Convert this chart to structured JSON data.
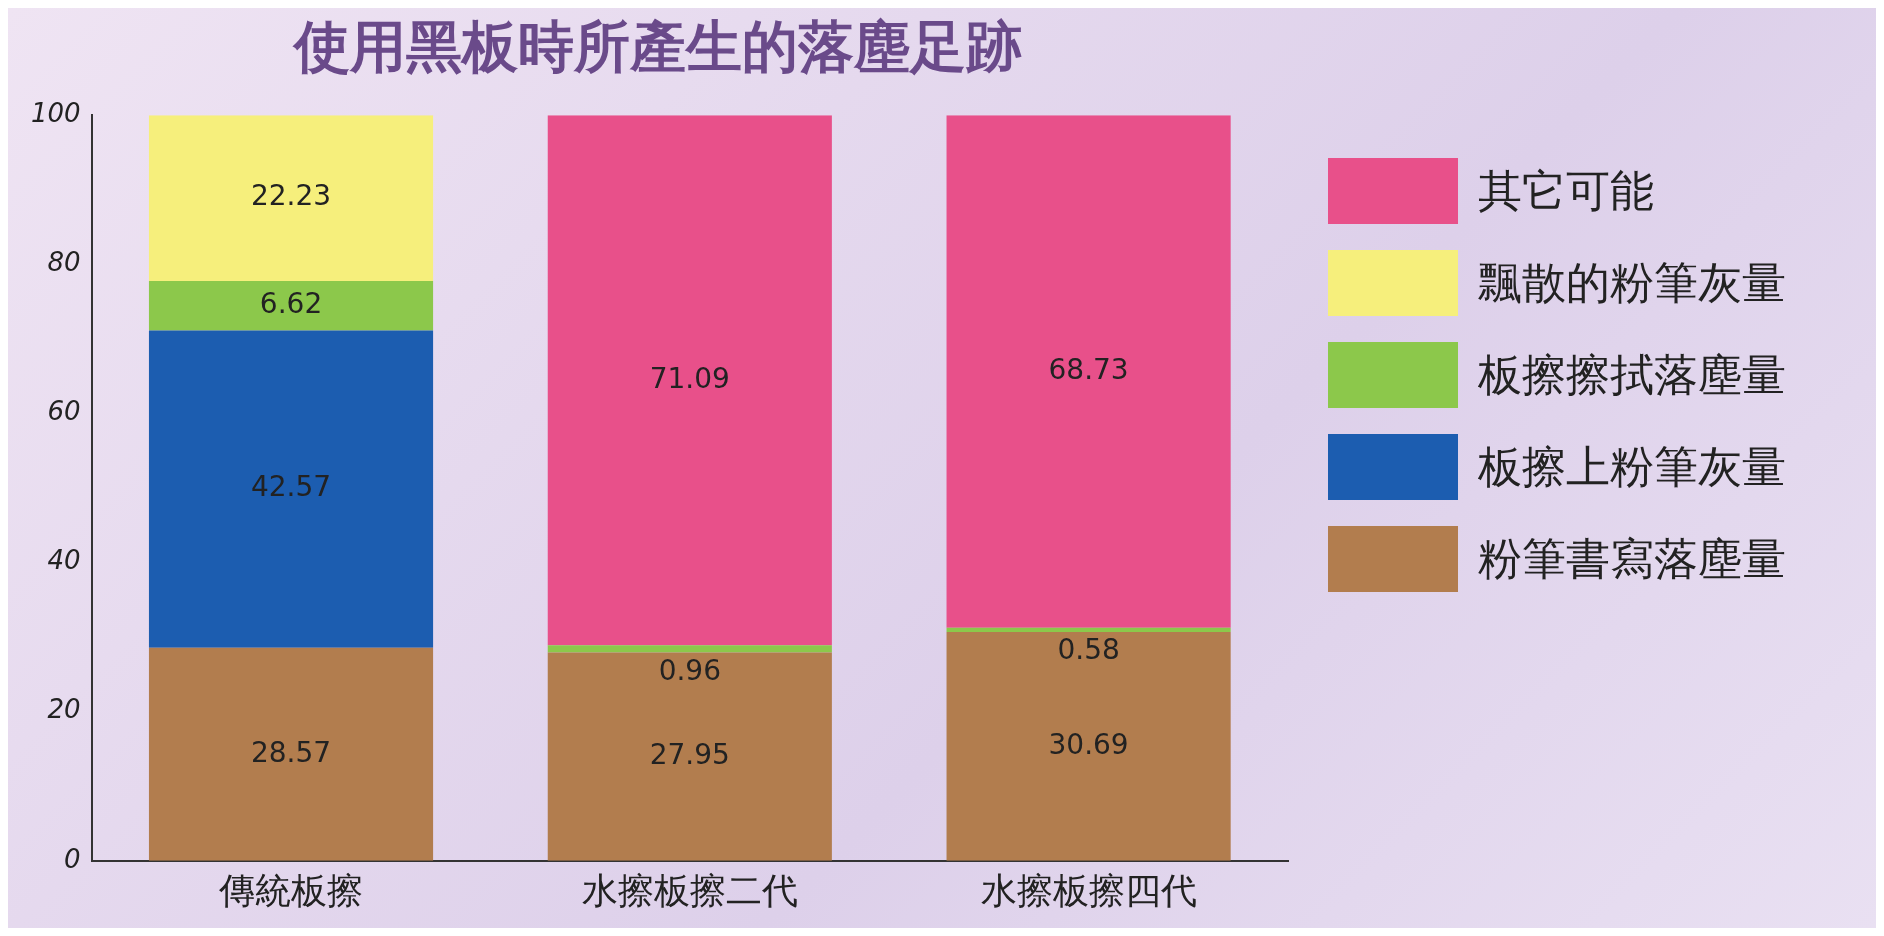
{
  "chart_data": {
    "type": "bar",
    "title": "使用黑板時所產生的落塵足跡",
    "categories": [
      "傳統板擦",
      "水擦板擦二代",
      "水擦板擦四代"
    ],
    "stacked": true,
    "ylim": [
      0,
      100
    ],
    "yticks": [
      0,
      20,
      40,
      60,
      80,
      100
    ],
    "grid": false,
    "legend": "right",
    "data_labels": true,
    "series": [
      {
        "name": "粉筆書寫落塵量",
        "color": "#b27d4e",
        "values": [
          28.57,
          27.95,
          30.69
        ]
      },
      {
        "name": "板擦上粉筆灰量",
        "color": "#1c5db0",
        "values": [
          42.57,
          null,
          null
        ]
      },
      {
        "name": "板擦擦拭落塵量",
        "color": "#8cc84b",
        "values": [
          6.62,
          0.96,
          0.58
        ]
      },
      {
        "name": "飄散的粉筆灰量",
        "color": "#f6ef7c",
        "values": [
          22.23,
          null,
          null
        ]
      },
      {
        "name": "其它可能",
        "color": "#e8508a",
        "values": [
          null,
          71.09,
          68.73
        ]
      }
    ]
  }
}
